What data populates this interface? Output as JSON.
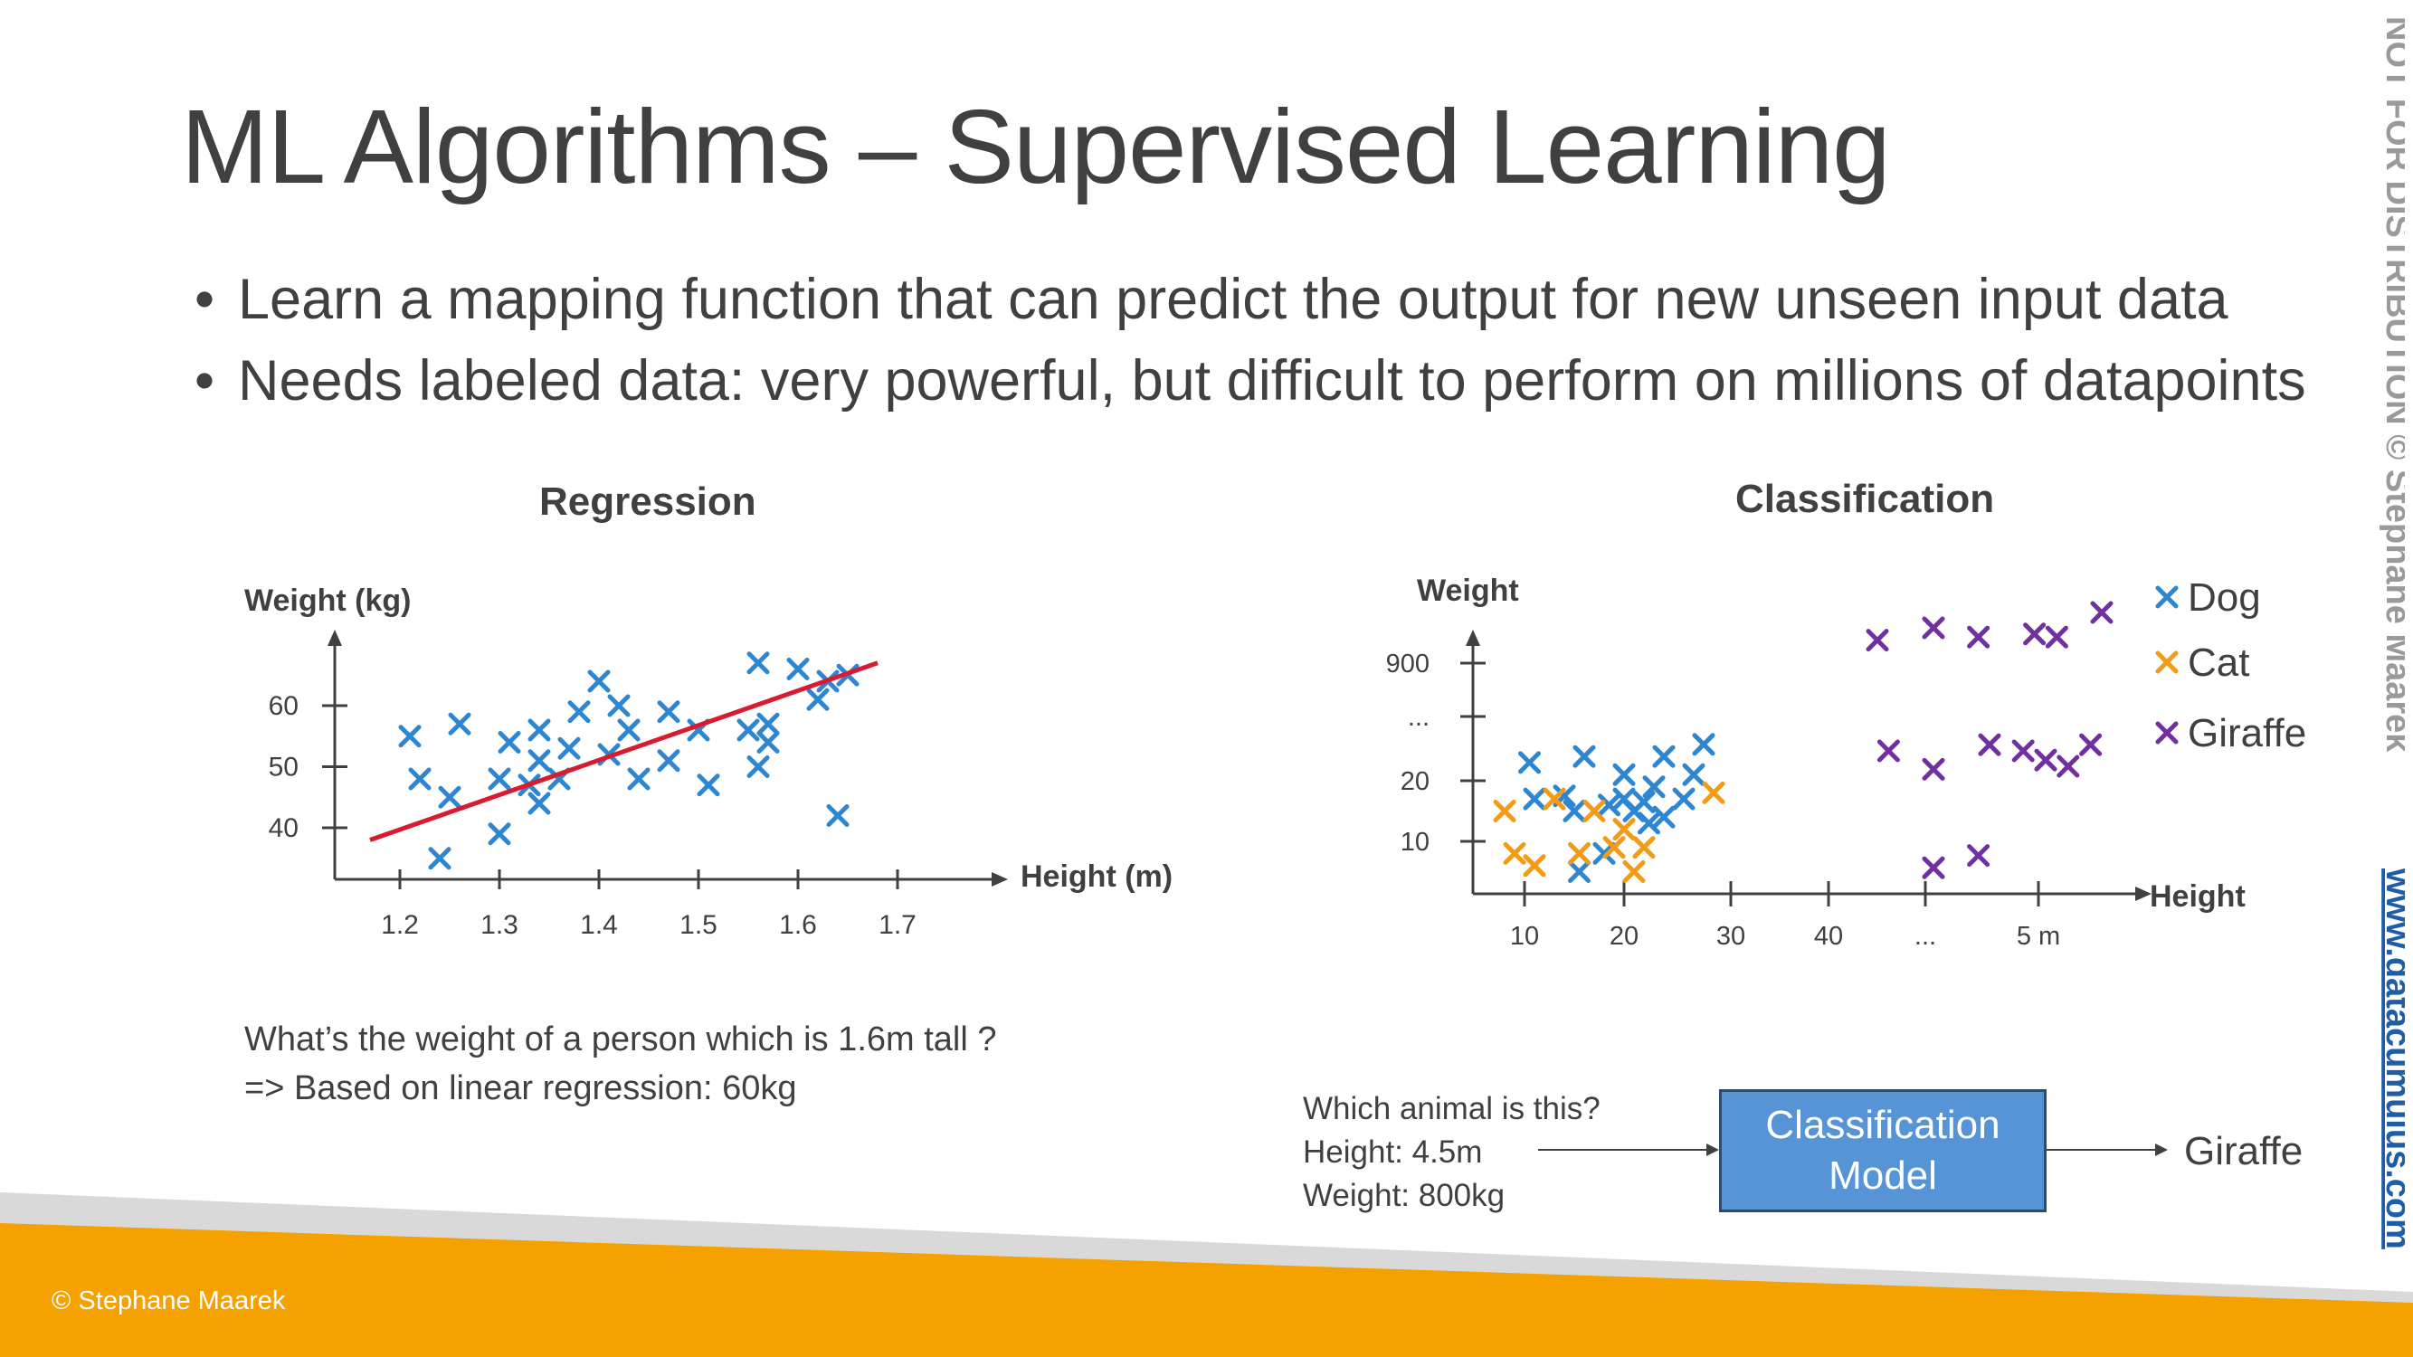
{
  "title": "ML Algorithms – Supervised Learning",
  "bullets": [
    "Learn a mapping function that can predict the output for new unseen input data",
    "Needs labeled data: very powerful, but difficult to perform on millions of datapoints"
  ],
  "watermark": {
    "text": "NOT FOR DISTRIBUTION © Stephane Maarek",
    "link": "www.datacumulus.com"
  },
  "footer": {
    "copyright": "© Stephane Maarek"
  },
  "colors": {
    "accent": "#f5a200",
    "grey_band": "#d9d9d9",
    "dog": "#2f86d0",
    "cat": "#f39a17",
    "giraffe": "#7030a0",
    "regression_line": "#d91b31",
    "model_box": "#5794d5"
  },
  "regression": {
    "section_title": "Regression",
    "question_line1": "What’s the weight of a person which is 1.6m tall ?",
    "question_line2": "=> Based on linear regression: 60kg"
  },
  "classification": {
    "section_title": "Classification",
    "question": "Which animal is this?",
    "height": "Height: 4.5m",
    "weight": "Weight: 800kg",
    "model_line1": "Classification",
    "model_line2": "Model",
    "result": "Giraffe"
  },
  "chart_data": [
    {
      "type": "scatter",
      "title": "Regression",
      "xlabel": "Height (m)",
      "ylabel": "Weight (kg)",
      "x_ticks": [
        "1.2",
        "1.3",
        "1.4",
        "1.5",
        "1.6",
        "1.7"
      ],
      "y_ticks": [
        "40",
        "50",
        "60"
      ],
      "series": [
        {
          "color": "#2f86d0",
          "points": [
            [
              1.21,
              55
            ],
            [
              1.22,
              48
            ],
            [
              1.26,
              57
            ],
            [
              1.25,
              45
            ],
            [
              1.24,
              35
            ],
            [
              1.3,
              39
            ],
            [
              1.3,
              48
            ],
            [
              1.31,
              54
            ],
            [
              1.33,
              47
            ],
            [
              1.34,
              56
            ],
            [
              1.34,
              51
            ],
            [
              1.34,
              44
            ],
            [
              1.36,
              48
            ],
            [
              1.37,
              53
            ],
            [
              1.38,
              59
            ],
            [
              1.4,
              64
            ],
            [
              1.41,
              52
            ],
            [
              1.42,
              60
            ],
            [
              1.43,
              56
            ],
            [
              1.44,
              48
            ],
            [
              1.47,
              59
            ],
            [
              1.47,
              51
            ],
            [
              1.5,
              56
            ],
            [
              1.51,
              47
            ],
            [
              1.55,
              56
            ],
            [
              1.56,
              67
            ],
            [
              1.56,
              50
            ],
            [
              1.57,
              54
            ],
            [
              1.57,
              57
            ],
            [
              1.6,
              66
            ],
            [
              1.62,
              61
            ],
            [
              1.63,
              64
            ],
            [
              1.65,
              65
            ],
            [
              1.64,
              42
            ]
          ]
        }
      ],
      "fit_line": {
        "color": "#d91b31",
        "from": [
          1.17,
          38
        ],
        "to": [
          1.68,
          67
        ]
      }
    },
    {
      "type": "scatter",
      "title": "Classification",
      "xlabel": "Height",
      "ylabel": "Weight",
      "x_ticks": [
        "10",
        "20",
        "30",
        "40",
        "...",
        "5 m"
      ],
      "y_ticks": [
        "10",
        "20",
        "...",
        "900"
      ],
      "legend": {
        "position": "top-right",
        "entries": [
          "Dog",
          "Cat",
          "Giraffe"
        ]
      },
      "series": [
        {
          "name": "Dog",
          "color": "#2f86d0",
          "points": [
            [
              10.5,
              23
            ],
            [
              11,
              17
            ],
            [
              14,
              17.5
            ],
            [
              15,
              15
            ],
            [
              15.5,
              5
            ],
            [
              16,
              24
            ],
            [
              18,
              8
            ],
            [
              18.5,
              16
            ],
            [
              20,
              21
            ],
            [
              20,
              17
            ],
            [
              21,
              15
            ],
            [
              22,
              16.5
            ],
            [
              22.5,
              13
            ],
            [
              23,
              19
            ],
            [
              24,
              24
            ],
            [
              24,
              14
            ],
            [
              26,
              17
            ],
            [
              27,
              21
            ],
            [
              28,
              26
            ]
          ]
        },
        {
          "name": "Cat",
          "color": "#f39a17",
          "points": [
            [
              8,
              15
            ],
            [
              9,
              8
            ],
            [
              11,
              6
            ],
            [
              13,
              17
            ],
            [
              15.5,
              8
            ],
            [
              17,
              15
            ],
            [
              19,
              9
            ],
            [
              20,
              12
            ],
            [
              21,
              5
            ],
            [
              22,
              9
            ],
            [
              29,
              18
            ]
          ]
        }
      ]
    },
    {
      "type": "scatter",
      "series": [
        {
          "name": "Giraffe",
          "color": "#7030a0",
          "points": [
            [
              4.0,
              860
            ],
            [
              4.5,
              900
            ],
            [
              4.9,
              870
            ],
            [
              5.4,
              880
            ],
            [
              5.6,
              870
            ],
            [
              6.0,
              950
            ],
            [
              4.1,
              500
            ],
            [
              4.5,
              440
            ],
            [
              5.0,
              520
            ],
            [
              5.3,
              500
            ],
            [
              5.5,
              470
            ],
            [
              5.7,
              450
            ],
            [
              5.9,
              520
            ],
            [
              4.5,
              120
            ],
            [
              4.9,
              160
            ]
          ]
        }
      ]
    }
  ]
}
